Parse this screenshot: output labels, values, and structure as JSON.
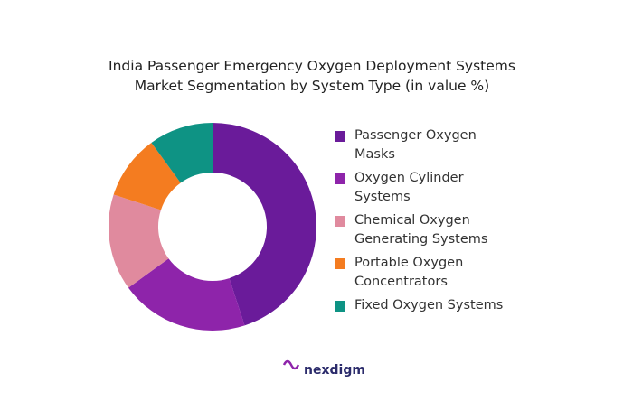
{
  "chart_data": {
    "type": "donut",
    "title": "India Passenger Emergency Oxygen Deployment Systems Market Segmentation by System Type (in value %)",
    "categories": [
      "Passenger Oxygen Masks",
      "Oxygen Cylinder Systems",
      "Chemical Oxygen Generating Systems",
      "Portable Oxygen Concentrators",
      "Fixed Oxygen Systems"
    ],
    "values": [
      45,
      20,
      15,
      10,
      10
    ],
    "colors": [
      "#6a1b9a",
      "#8e24aa",
      "#e08a9e",
      "#f47c20",
      "#0e9384"
    ],
    "legend": "right"
  },
  "brand": "nexdigm"
}
